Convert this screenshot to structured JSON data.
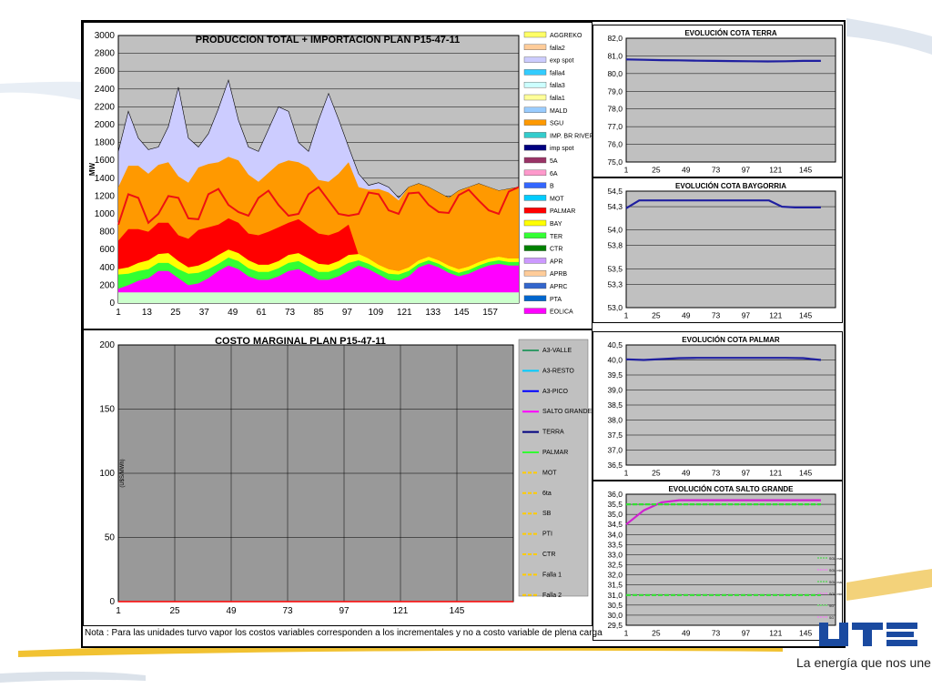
{
  "brand": {
    "logo_text": "UTE",
    "slogan": "La energía que nos une"
  },
  "footer_note": "Nota : Para las unidades turvo vapor los costos variables corresponden a los incrementales y no a costo variable de plena carga",
  "colors": {
    "terra": "#1f1fa0",
    "baygorria": "#1f1fa0",
    "palmar": "#1f1fa0",
    "salto_grande": "#d020d0",
    "sg_limit": "#33dd33",
    "plot_bg": "#c0c0c0",
    "cost_plot_bg": "#999999"
  },
  "chart_data": [
    {
      "id": "produccion",
      "type": "area",
      "title": "PRODUCCION TOTAL + IMPORTACION PLAN P15-47-11",
      "ylabel": "MW",
      "xlabel": "",
      "ylim": [
        0,
        3000
      ],
      "xlim": [
        1,
        168
      ],
      "yticks": [
        "0",
        "200",
        "400",
        "600",
        "800",
        "1000",
        "1200",
        "1400",
        "1600",
        "1800",
        "2000",
        "2200",
        "2400",
        "2600",
        "2800",
        "3000"
      ],
      "xticks": [
        "1",
        "13",
        "25",
        "37",
        "49",
        "61",
        "73",
        "85",
        "97",
        "109",
        "121",
        "133",
        "145",
        "157"
      ],
      "legend": [
        {
          "name": "AGGREKO",
          "color": "#ffff66"
        },
        {
          "name": "falla2",
          "color": "#ffcc99"
        },
        {
          "name": "exp spot",
          "color": "#ccccff"
        },
        {
          "name": "falla4",
          "color": "#33ccff"
        },
        {
          "name": "falla3",
          "color": "#ccffff"
        },
        {
          "name": "falla1",
          "color": "#ffff99"
        },
        {
          "name": "MALD",
          "color": "#99ccff"
        },
        {
          "name": "SGU",
          "color": "#ff9900"
        },
        {
          "name": "IMP. BR RIVERA",
          "color": "#33cccc"
        },
        {
          "name": "imp spot",
          "color": "#000080"
        },
        {
          "name": "5A",
          "color": "#993366"
        },
        {
          "name": "6A",
          "color": "#ff99cc"
        },
        {
          "name": "B",
          "color": "#3366ff"
        },
        {
          "name": "MOT",
          "color": "#00ccff"
        },
        {
          "name": "PALMAR",
          "color": "#ff0000"
        },
        {
          "name": "BAY",
          "color": "#ffff00"
        },
        {
          "name": "TER",
          "color": "#33ff33"
        },
        {
          "name": "CTR",
          "color": "#008000"
        },
        {
          "name": "APR",
          "color": "#cc99ff"
        },
        {
          "name": "APRB",
          "color": "#ffcc99"
        },
        {
          "name": "APRC",
          "color": "#3366cc"
        },
        {
          "name": "PTA",
          "color": "#0066cc"
        },
        {
          "name": "EOLICA",
          "color": "#ff00ff"
        }
      ],
      "series": [
        {
          "name": "EOLICA",
          "color": "#ff00ff",
          "values": [
            160,
            200,
            250,
            280,
            360,
            360,
            280,
            200,
            220,
            280,
            360,
            420,
            380,
            300,
            260,
            260,
            300,
            360,
            380,
            320,
            260,
            260,
            300,
            360,
            420,
            380,
            320,
            260,
            250,
            300,
            400,
            440,
            400,
            340,
            300,
            330,
            380,
            420,
            440,
            420,
            420
          ]
        },
        {
          "name": "TER",
          "color": "#33ff33",
          "values": [
            320,
            330,
            360,
            380,
            450,
            450,
            380,
            330,
            340,
            380,
            440,
            510,
            470,
            390,
            350,
            350,
            390,
            450,
            470,
            410,
            350,
            350,
            390,
            450,
            480,
            440,
            380,
            330,
            320,
            360,
            440,
            480,
            440,
            380,
            340,
            370,
            420,
            460,
            480,
            460,
            460
          ]
        },
        {
          "name": "BAY",
          "color": "#ffff00",
          "values": [
            380,
            400,
            450,
            480,
            550,
            560,
            470,
            400,
            420,
            470,
            540,
            600,
            560,
            480,
            430,
            430,
            470,
            540,
            560,
            500,
            440,
            430,
            470,
            540,
            550,
            500,
            430,
            380,
            360,
            400,
            480,
            520,
            480,
            420,
            380,
            410,
            460,
            500,
            520,
            500,
            500
          ]
        },
        {
          "name": "PALMAR",
          "color": "#ff0000",
          "values": [
            700,
            830,
            830,
            800,
            900,
            900,
            760,
            720,
            820,
            850,
            880,
            950,
            900,
            780,
            760,
            800,
            850,
            900,
            940,
            860,
            780,
            760,
            800,
            880,
            540,
            500,
            430,
            380,
            360,
            400,
            480,
            520,
            480,
            420,
            380,
            410,
            460,
            500,
            520,
            500,
            500
          ]
        },
        {
          "name": "SGU",
          "color": "#ff9900",
          "values": [
            1300,
            1540,
            1540,
            1450,
            1550,
            1580,
            1420,
            1350,
            1520,
            1560,
            1580,
            1640,
            1600,
            1440,
            1360,
            1460,
            1560,
            1600,
            1580,
            1520,
            1380,
            1360,
            1450,
            1580,
            1300,
            1270,
            1280,
            1240,
            1150,
            1300,
            1340,
            1300,
            1240,
            1180,
            1260,
            1300,
            1340,
            1300,
            1260,
            1280,
            1300
          ]
        },
        {
          "name": "APR",
          "color": "#ccccff",
          "values": [
            1700,
            2150,
            1850,
            1720,
            1750,
            1980,
            2420,
            1850,
            1750,
            1900,
            2180,
            2500,
            2050,
            1750,
            1700,
            1950,
            2200,
            2150,
            1800,
            1700,
            2050,
            2350,
            2060,
            1750,
            1450,
            1320,
            1350,
            1300,
            1180,
            1300,
            1340,
            1300,
            1240,
            1180,
            1260,
            1300,
            1340,
            1300,
            1260,
            1280,
            1300
          ]
        }
      ],
      "demand": {
        "name": "Demanda",
        "color": "#ee1111",
        "values": [
          880,
          1220,
          1180,
          900,
          1000,
          1200,
          1180,
          950,
          940,
          1220,
          1280,
          1100,
          1020,
          980,
          1180,
          1260,
          1100,
          980,
          1000,
          1220,
          1300,
          1150,
          1000,
          980,
          1000,
          1240,
          1220,
          1040,
          1000,
          1230,
          1240,
          1100,
          1020,
          1010,
          1210,
          1270,
          1150,
          1040,
          1000,
          1250,
          1300
        ]
      }
    },
    {
      "id": "costo",
      "type": "line",
      "title": "COSTO MARGINAL PLAN P15-47-11",
      "ylabel": "(U$S/MWh)",
      "xlabel": "",
      "ylim": [
        0,
        200
      ],
      "yticks": [
        "0",
        "50",
        "100",
        "150",
        "200"
      ],
      "xticks": [
        "1",
        "25",
        "49",
        "73",
        "97",
        "121",
        "145"
      ],
      "legend": [
        {
          "name": "A3-VALLE",
          "color": "#339966",
          "dash": false
        },
        {
          "name": "A3-RESTO",
          "color": "#00ccff",
          "dash": false
        },
        {
          "name": "A3-PICO",
          "color": "#0000ff",
          "dash": false
        },
        {
          "name": "SALTO GRANDE",
          "color": "#ff00ff",
          "dash": false
        },
        {
          "name": "TERRA",
          "color": "#000080",
          "dash": false
        },
        {
          "name": "PALMAR",
          "color": "#33ff33",
          "dash": false
        },
        {
          "name": "MOT",
          "color": "#ffcc00",
          "dash": true
        },
        {
          "name": "6ta",
          "color": "#ffcc00",
          "dash": true
        },
        {
          "name": "SB",
          "color": "#ffcc00",
          "dash": true
        },
        {
          "name": "PTI",
          "color": "#ffcc00",
          "dash": true
        },
        {
          "name": "CTR",
          "color": "#ffcc00",
          "dash": true
        },
        {
          "name": "Falla 1",
          "color": "#ffcc00",
          "dash": true
        },
        {
          "name": "Falla 2",
          "color": "#ffcc00",
          "dash": true
        }
      ],
      "series": [
        {
          "name": "",
          "color": "#ff0000",
          "values": [
            0,
            0,
            0,
            0,
            0,
            0,
            0,
            0
          ]
        }
      ]
    },
    {
      "id": "terra",
      "type": "line",
      "title": "EVOLUCIÓN COTA TERRA",
      "ylim": [
        75.0,
        82.0
      ],
      "yticks": [
        "75,0",
        "76,0",
        "77,0",
        "78,0",
        "79,0",
        "80,0",
        "81,0",
        "82,0"
      ],
      "xticks": [
        "1",
        "25",
        "49",
        "73",
        "97",
        "121",
        "145"
      ],
      "series": [
        {
          "name": "",
          "values": [
            80.8,
            80.78,
            80.76,
            80.75,
            80.73,
            80.72,
            80.71,
            80.7,
            80.69,
            80.7,
            80.72,
            80.72
          ]
        }
      ]
    },
    {
      "id": "baygorria",
      "type": "line",
      "title": "EVOLUCIÓN COTA BAYGORRIA",
      "ylim": [
        53.0,
        54.5
      ],
      "yticks": [
        "53,0",
        "53,3",
        "53,5",
        "53,8",
        "54,0",
        "54,3",
        "54,5"
      ],
      "xticks": [
        "1",
        "25",
        "49",
        "73",
        "97",
        "121",
        "145"
      ],
      "series": [
        {
          "name": "",
          "values": [
            54.28,
            54.38,
            54.38,
            54.38,
            54.38,
            54.38,
            54.38,
            54.38,
            54.38,
            54.38,
            54.38,
            54.38,
            54.3,
            54.29,
            54.29,
            54.29
          ]
        }
      ]
    },
    {
      "id": "palmar",
      "type": "line",
      "title": "EVOLUCIÓN COTA PALMAR",
      "ylim": [
        36.5,
        40.5
      ],
      "yticks": [
        "36,5",
        "37,0",
        "37,5",
        "38,0",
        "38,5",
        "39,0",
        "39,5",
        "40,0",
        "40,5"
      ],
      "xticks": [
        "1",
        "25",
        "49",
        "73",
        "97",
        "121",
        "145"
      ],
      "series": [
        {
          "name": "",
          "values": [
            40.02,
            40.0,
            40.03,
            40.06,
            40.07,
            40.07,
            40.07,
            40.07,
            40.07,
            40.07,
            40.06,
            40.0
          ]
        }
      ]
    },
    {
      "id": "salto_grande",
      "type": "line",
      "title": "EVOLUCIÓN COTA SALTO GRANDE",
      "ylim": [
        29.5,
        36.0
      ],
      "yticks": [
        "29,5",
        "30,0",
        "30,5",
        "31,0",
        "31,5",
        "32,0",
        "32,5",
        "33,0",
        "33,5",
        "34,0",
        "34,5",
        "35,0",
        "35,5",
        "36,0"
      ],
      "xticks": [
        "1",
        "25",
        "49",
        "73",
        "97",
        "121",
        "145"
      ],
      "legend": [
        "SGU max",
        "SGU min",
        "SGU max",
        "SGU min",
        "SG",
        "SG"
      ],
      "series": [
        {
          "name": "",
          "values": [
            34.5,
            35.2,
            35.6,
            35.7,
            35.7,
            35.7,
            35.7,
            35.7,
            35.7,
            35.7,
            35.7,
            35.7
          ]
        },
        {
          "name": "",
          "values": [
            35.5,
            35.5,
            35.5,
            35.5,
            35.5,
            35.5,
            35.5,
            35.5,
            35.5,
            35.5,
            35.5,
            35.5
          ]
        },
        {
          "name": "",
          "values": [
            31.0,
            31.0,
            31.0,
            31.0,
            31.0,
            31.0,
            31.0,
            31.0,
            31.0,
            31.0,
            31.0,
            31.0
          ]
        }
      ]
    }
  ]
}
